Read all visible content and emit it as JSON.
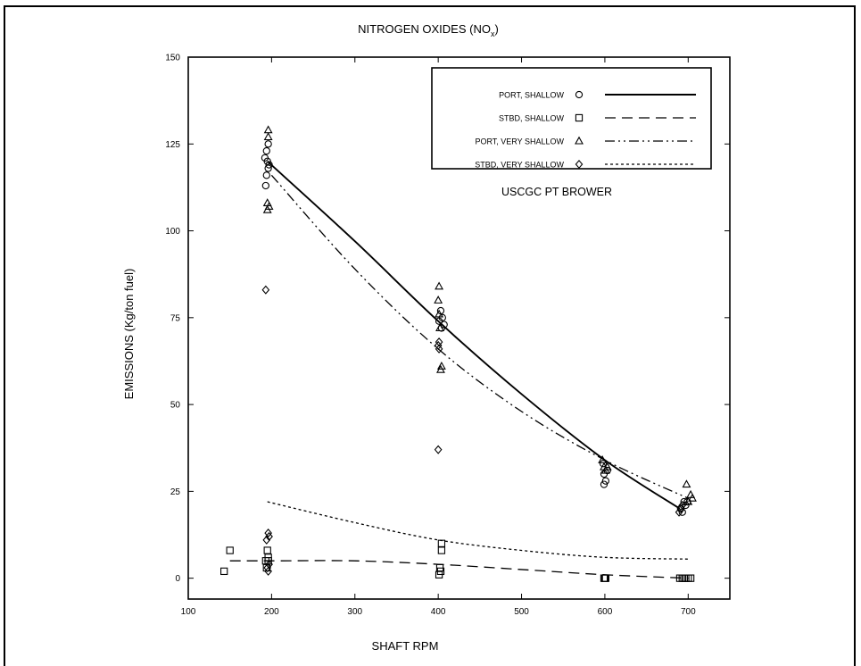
{
  "chart_data": {
    "type": "scatter",
    "title": "NITROGEN OXIDES (NO",
    "title_subscript": "x",
    "title_close": ")",
    "xlabel": "SHAFT RPM",
    "ylabel": "EMISSIONS (Kg/ton fuel)",
    "xlim": [
      100,
      750
    ],
    "ylim": [
      -6,
      150
    ],
    "xticks": [
      100,
      200,
      300,
      400,
      500,
      600,
      700
    ],
    "yticks": [
      0,
      25,
      50,
      75,
      100,
      125,
      150
    ],
    "annotation": "USCGC PT BROWER",
    "legend_position": "top-right",
    "series": [
      {
        "name": "PORT, SHALLOW",
        "marker": "circle",
        "line": "solid",
        "points": [
          [
            192,
            121
          ],
          [
            194,
            123
          ],
          [
            196,
            118
          ],
          [
            194,
            116
          ],
          [
            193,
            113
          ],
          [
            196,
            125
          ],
          [
            195,
            120
          ],
          [
            197,
            119
          ],
          [
            403,
            77
          ],
          [
            405,
            75
          ],
          [
            407,
            73
          ],
          [
            401,
            74
          ],
          [
            404,
            72
          ],
          [
            599,
            30
          ],
          [
            601,
            28
          ],
          [
            603,
            31
          ],
          [
            599,
            27
          ],
          [
            598,
            33
          ],
          [
            691,
            20
          ],
          [
            693,
            19
          ],
          [
            695,
            22
          ],
          [
            697,
            21
          ],
          [
            699,
            22
          ]
        ],
        "fit": [
          [
            195,
            120
          ],
          [
            300,
            97
          ],
          [
            400,
            74
          ],
          [
            500,
            53
          ],
          [
            600,
            34
          ],
          [
            690,
            20
          ]
        ]
      },
      {
        "name": "STBD, SHALLOW",
        "marker": "square",
        "line": "dashed",
        "points": [
          [
            143,
            2
          ],
          [
            150,
            8
          ],
          [
            193,
            5
          ],
          [
            194,
            3
          ],
          [
            196,
            6
          ],
          [
            195,
            8
          ],
          [
            196,
            5
          ],
          [
            401,
            1
          ],
          [
            403,
            2
          ],
          [
            402,
            3
          ],
          [
            404,
            8
          ],
          [
            404,
            10
          ],
          [
            600,
            0
          ],
          [
            601,
            0
          ],
          [
            599,
            0
          ],
          [
            690,
            0
          ],
          [
            693,
            0
          ],
          [
            695,
            0
          ],
          [
            697,
            0
          ],
          [
            700,
            0
          ],
          [
            703,
            0
          ]
        ],
        "fit": [
          [
            150,
            5
          ],
          [
            200,
            5
          ],
          [
            300,
            5
          ],
          [
            400,
            4
          ],
          [
            500,
            2.5
          ],
          [
            600,
            1
          ],
          [
            700,
            0
          ]
        ]
      },
      {
        "name": "PORT, VERY SHALLOW",
        "marker": "triangle",
        "line": "dash-dot",
        "points": [
          [
            196,
            129
          ],
          [
            196,
            127
          ],
          [
            195,
            108
          ],
          [
            195,
            106
          ],
          [
            197,
            107
          ],
          [
            401,
            84
          ],
          [
            400,
            80
          ],
          [
            401,
            76
          ],
          [
            402,
            72
          ],
          [
            404,
            61
          ],
          [
            403,
            60
          ],
          [
            597,
            34
          ],
          [
            599,
            32
          ],
          [
            601,
            31
          ],
          [
            603,
            32
          ],
          [
            698,
            27
          ],
          [
            703,
            24
          ],
          [
            705,
            23
          ],
          [
            700,
            22
          ]
        ],
        "fit": [
          [
            200,
            116
          ],
          [
            300,
            89
          ],
          [
            400,
            66
          ],
          [
            500,
            48
          ],
          [
            600,
            34
          ],
          [
            700,
            23
          ]
        ]
      },
      {
        "name": "STBD, VERY SHALLOW",
        "marker": "diamond",
        "line": "dotted",
        "points": [
          [
            193,
            83
          ],
          [
            194,
            11
          ],
          [
            196,
            13
          ],
          [
            197,
            12
          ],
          [
            195,
            3
          ],
          [
            196,
            2
          ],
          [
            197,
            4
          ],
          [
            401,
            68
          ],
          [
            400,
            67
          ],
          [
            401,
            66
          ],
          [
            400,
            37
          ],
          [
            689,
            19
          ],
          [
            691,
            20
          ],
          [
            693,
            21
          ]
        ],
        "fit": [
          [
            195,
            22
          ],
          [
            300,
            16
          ],
          [
            400,
            11
          ],
          [
            500,
            8
          ],
          [
            600,
            6
          ],
          [
            700,
            5.5
          ]
        ]
      }
    ]
  }
}
